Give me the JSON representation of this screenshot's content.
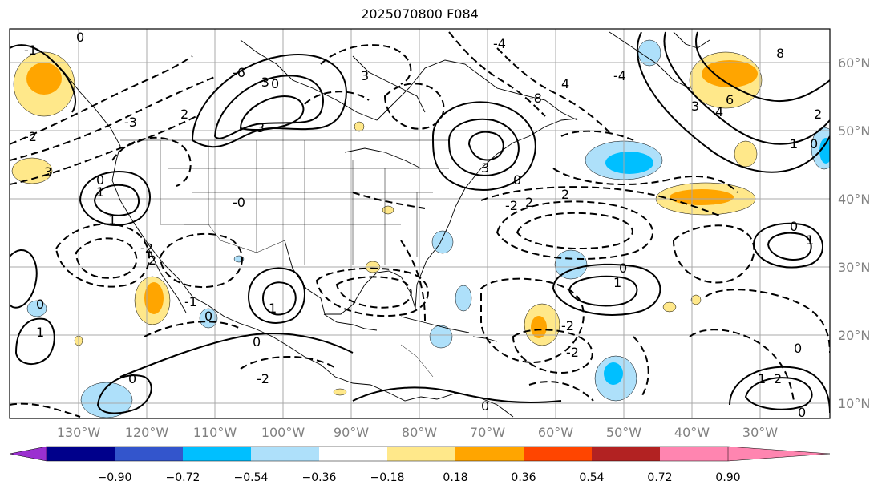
{
  "title": "2025070800 F084",
  "longitude_labels": [
    "130°W",
    "120°W",
    "110°W",
    "100°W",
    "90°W",
    "80°W",
    "70°W",
    "60°W",
    "50°W",
    "40°W",
    "30°W"
  ],
  "latitude_labels": [
    "60°N",
    "50°N",
    "40°N",
    "30°N",
    "20°N",
    "10°N"
  ],
  "colorbar": {
    "colors": [
      "#9b30d0",
      "#00008b",
      "#3355cc",
      "#00bfff",
      "#aee0fa",
      "#ffffff",
      "#ffe88a",
      "#ffa500",
      "#ff4500",
      "#b22222",
      "#ff85b0"
    ],
    "labels": [
      "−0.90",
      "−0.72",
      "−0.54",
      "−0.36",
      "−0.18",
      "0.18",
      "0.36",
      "0.54",
      "0.72",
      "0.90"
    ]
  },
  "contour_labels": [
    "0",
    "1",
    "2",
    "3",
    "4",
    "6",
    "8",
    "-0",
    "-1",
    "-2",
    "-3",
    "-4",
    "-6",
    "-8"
  ]
}
